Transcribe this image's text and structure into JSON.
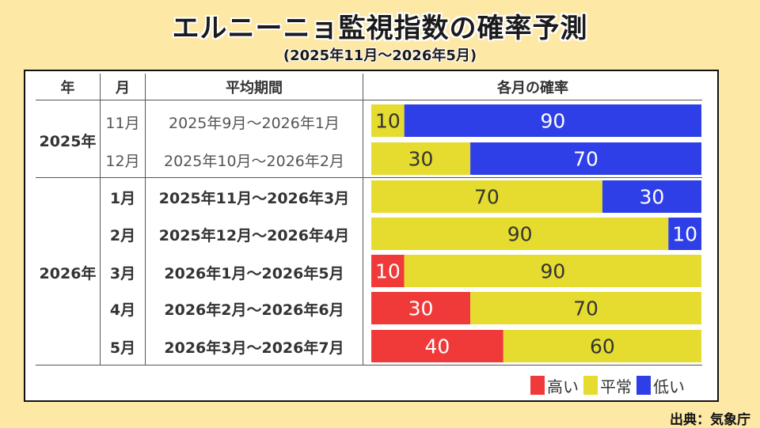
{
  "title": "エルニーニョ監視指数の確率予測",
  "subtitle": "(2025年11月～2026年5月)",
  "source": "出典：気象庁",
  "table": {
    "headers": {
      "year": "年",
      "month": "月",
      "period": "平均期間",
      "prob": "各月の確率"
    },
    "year_groups": [
      "2025年",
      "2026年"
    ]
  },
  "chart_data": {
    "type": "bar",
    "stacked": true,
    "orientation": "horizontal",
    "title": "各月の確率",
    "categories": [
      "11月",
      "12月",
      "1月",
      "2月",
      "3月",
      "4月",
      "5月"
    ],
    "periods": [
      "2025年9月～2026年1月",
      "2025年10月～2026年2月",
      "2025年11月～2026年3月",
      "2025年12月～2026年4月",
      "2026年1月～2026年5月",
      "2026年2月～2026年6月",
      "2026年3月～2026年7月"
    ],
    "series": [
      {
        "name": "高い",
        "color": "#f03a3a",
        "values": [
          0,
          0,
          0,
          0,
          10,
          30,
          40
        ]
      },
      {
        "name": "平常",
        "color": "#e5dc2f",
        "values": [
          10,
          30,
          70,
          90,
          90,
          70,
          60
        ]
      },
      {
        "name": "低い",
        "color": "#2e3fe8",
        "values": [
          90,
          70,
          30,
          10,
          0,
          0,
          0
        ]
      }
    ],
    "xlim": [
      0,
      100
    ]
  }
}
